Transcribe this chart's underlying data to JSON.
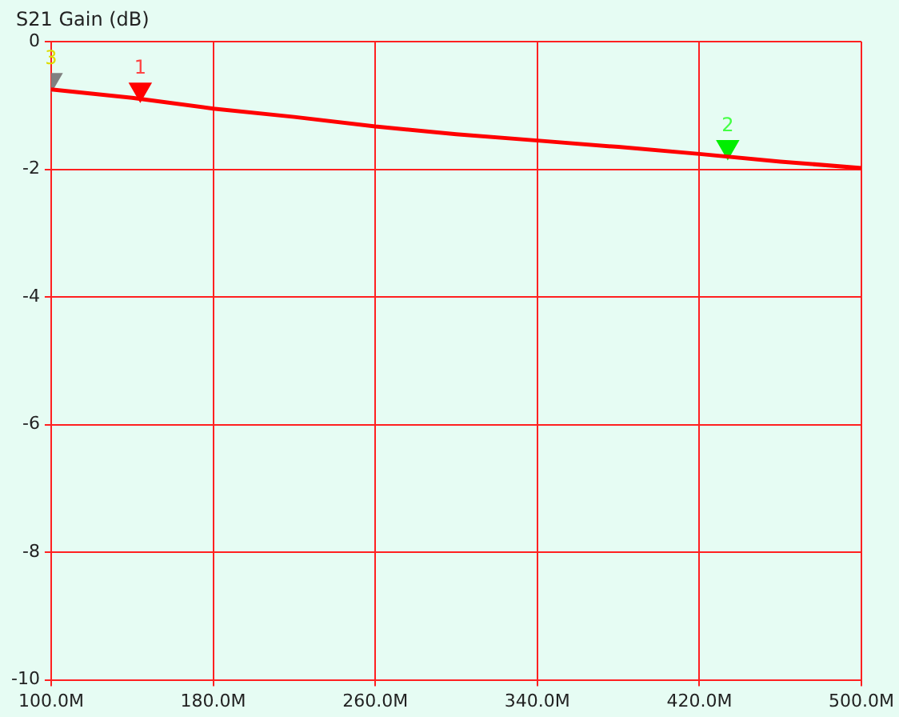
{
  "chart_data": {
    "type": "line",
    "title": "S21 Gain (dB)",
    "x": [
      100,
      140,
      180,
      220,
      260,
      300,
      340,
      380,
      420,
      460,
      500
    ],
    "series": [
      {
        "color": "#ff0000",
        "values": [
          -0.75,
          -0.88,
          -1.05,
          -1.18,
          -1.33,
          -1.45,
          -1.55,
          -1.65,
          -1.76,
          -1.88,
          -1.98
        ]
      },
      {
        "type": "scatter",
        "marker": "triangle",
        "x": [
          144,
          434,
          100
        ],
        "colors": [
          "#ff0000",
          "#00ee00",
          "#808080"
        ],
        "values": [
          -0.75,
          -1.65,
          -0.6
        ]
      }
    ],
    "xlim": [
      100,
      500
    ],
    "xticks": [
      {
        "value": 100,
        "label": "100.0M"
      },
      {
        "value": 180,
        "label": "180.0M"
      },
      {
        "value": 260,
        "label": "260.0M"
      },
      {
        "value": 340,
        "label": "340.0M"
      },
      {
        "value": 420,
        "label": "420.0M"
      },
      {
        "value": 500,
        "label": "500.0M"
      }
    ],
    "ylim": [
      -10,
      0
    ],
    "yticks": [
      -10,
      -8,
      -6,
      -4,
      -2,
      0
    ],
    "grid": true,
    "marker": "none",
    "line_style": "solid",
    "annotations": [
      {
        "text": "1",
        "x": 144,
        "y": -0.75
      },
      {
        "text": "2",
        "x": 434,
        "y": -1.65
      },
      {
        "text": "3",
        "x": 100,
        "y": -0.6
      }
    ]
  }
}
